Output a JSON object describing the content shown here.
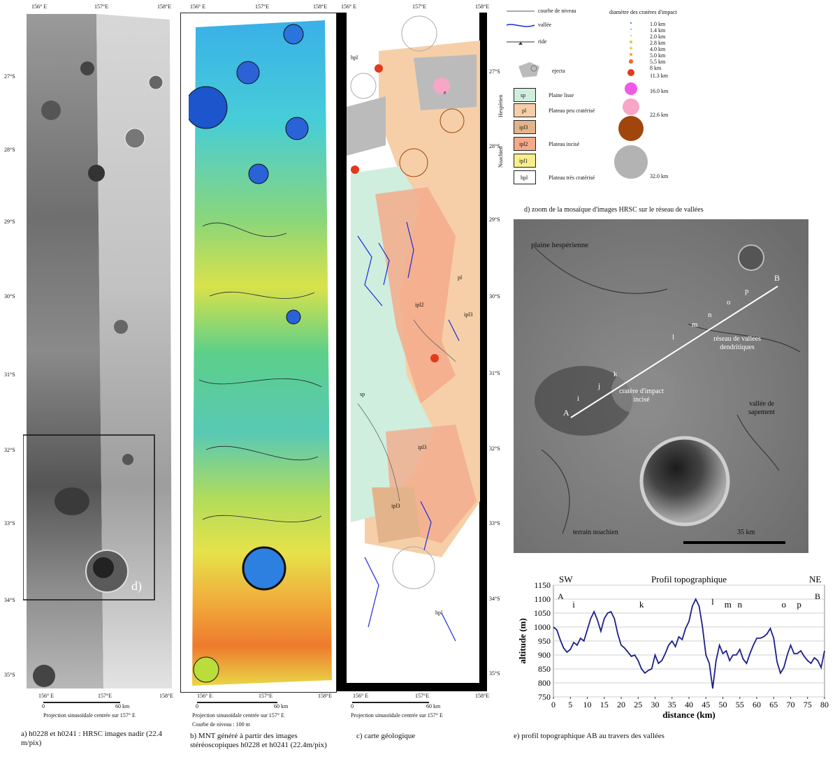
{
  "panel_a": {
    "top_ticks": [
      "156° E",
      "157°E",
      "158°E"
    ],
    "left_ticks": [
      "27°S",
      "28°S",
      "29°S",
      "30°S",
      "31°S",
      "32°S",
      "33°S",
      "34°S",
      "35°S"
    ],
    "bottom_ticks": [
      "156° E",
      "157°E",
      "158°E"
    ],
    "scale_zero": "0",
    "scale_end": "60 km",
    "projection": "Projection sinusoïdale centrée sur 157° E",
    "zoom_label": "d)",
    "caption": "a) h0228 et h0241 : HRSC images nadir (22.4 m/pix)"
  },
  "panel_b": {
    "top_ticks": [
      "156° E",
      "157°E",
      "158°E"
    ],
    "bottom_ticks": [
      "156° E",
      "157°E",
      "158°E"
    ],
    "scale_zero": "0",
    "scale_end": "60 km",
    "projection": "Projection sinusoïdale centrée sur 157° E",
    "contour": "Courbe de niveau : 100 m",
    "caption": "b) MNT généré à partir des images stéréoscopiques h0228 et h0241 (22.4m/pix)"
  },
  "panel_c": {
    "top_ticks": [
      "156° E",
      "157°E",
      "158°E"
    ],
    "right_ticks": [
      "27°S",
      "28°S",
      "29°S",
      "30°S",
      "31°S",
      "32°S",
      "33°S",
      "34°S",
      "35°S"
    ],
    "bottom_ticks": [
      "156° E",
      "157°E",
      "158°E"
    ],
    "scale_zero": "0",
    "scale_end": "60 km",
    "projection": "Projection sinusoïdale centrée sur 157° E",
    "map_labels": [
      "hpl",
      "pl",
      "ipl2",
      "ipl3",
      "sp",
      "ipl3",
      "ipl3",
      "hpl",
      "e"
    ],
    "caption": "c) carte géologique"
  },
  "legend": {
    "line_items": [
      "courbe de niveau",
      "vallée",
      "ride"
    ],
    "ejecta": "ejecta",
    "hesperian": "Hespérien",
    "noachian": "Noachien",
    "units": [
      {
        "code": "sp",
        "label": "Plaine lisse",
        "color": "#cfeede"
      },
      {
        "code": "pl",
        "label": "Plateau peu cratérisé",
        "color": "#f6cfa8"
      },
      {
        "code": "ipl3",
        "label": "",
        "color": "#e3b48c"
      },
      {
        "code": "ipl2",
        "label": "Plateau incisé",
        "color": "#f3aa8b"
      },
      {
        "code": "ipl1",
        "label": "",
        "color": "#f7ef8a"
      },
      {
        "code": "hpl",
        "label": "Plateau très cratérisé",
        "color": "#ffffff"
      }
    ],
    "crater_title": "diamètre des cratères d'impact",
    "crater_sizes": [
      {
        "label": "1.0 km",
        "color": "#2a57d9"
      },
      {
        "label": "1.4 km",
        "color": "#2ec3d4"
      },
      {
        "label": "2.0 km",
        "color": "#7bd37a"
      },
      {
        "label": "2.8 km",
        "color": "#c9d84a"
      },
      {
        "label": "4.0 km",
        "color": "#f4d34b"
      },
      {
        "label": "5.0 km",
        "color": "#f5a143"
      },
      {
        "label": "5.5 km",
        "color": "#ef6a2c"
      },
      {
        "label": "8 km",
        "color": "#e23a1a"
      },
      {
        "label": "11.3 km",
        "color": "#f059e8"
      },
      {
        "label": "16.0 km",
        "color": "#f7a6c6"
      },
      {
        "label": "22.6 km",
        "color": "#a0460c"
      },
      {
        "label": "32.0 km",
        "color": "#b3b3b3"
      }
    ]
  },
  "panel_d": {
    "title": "d) zoom  de la mosaïque d'images HRSC sur le réseau de vallées",
    "labels": {
      "plaine": "plaine hespérienne",
      "reseau": "réseau de vallées dendritiques",
      "cratere": "cratère d'impact incisé",
      "vallee": "vallée de sapement",
      "terrain": "terrain noachien",
      "scale": "35 km",
      "A": "A",
      "B": "B"
    },
    "profile_letters": [
      "i",
      "j",
      "k",
      "l",
      "m",
      "n",
      "o",
      "p"
    ]
  },
  "panel_e": {
    "caption": "e) profil topographique AB au travers des vallées",
    "chart_data": {
      "type": "line",
      "title": "Profil topographique",
      "xlabel": "distance (km)",
      "ylabel": "altitude (m)",
      "xlim": [
        0,
        80
      ],
      "ylim": [
        750,
        1150
      ],
      "x_ticks": [
        0,
        5,
        10,
        15,
        20,
        25,
        30,
        35,
        40,
        45,
        50,
        55,
        60,
        65,
        70,
        75,
        80
      ],
      "y_ticks": [
        750,
        800,
        850,
        900,
        950,
        1000,
        1050,
        1100,
        1150
      ],
      "grid": true,
      "corner_labels": {
        "sw": "SW",
        "ne": "NE",
        "a": "A",
        "b": "B"
      },
      "annotations": [
        {
          "text": "i",
          "x": 6,
          "y": 1000
        },
        {
          "text": "k",
          "x": 26,
          "y": 1000
        },
        {
          "text": "l",
          "x": 47,
          "y": 1010
        },
        {
          "text": "m",
          "x": 51.5,
          "y": 1000
        },
        {
          "text": "n",
          "x": 55,
          "y": 1000
        },
        {
          "text": "o",
          "x": 68,
          "y": 1000
        },
        {
          "text": "p",
          "x": 72.5,
          "y": 1000
        }
      ],
      "series": [
        {
          "color": "#1c1f8a",
          "x": [
            0,
            1,
            2,
            3,
            4,
            5,
            6,
            7,
            8,
            9,
            10,
            11,
            12,
            13,
            14,
            15,
            16,
            17,
            18,
            19,
            20,
            21,
            22,
            23,
            24,
            25,
            26,
            27,
            28,
            29,
            30,
            31,
            32,
            33,
            34,
            35,
            36,
            37,
            38,
            39,
            40,
            41,
            42,
            43,
            44,
            45,
            46,
            47,
            48,
            49,
            50,
            51,
            52,
            53,
            54,
            55,
            56,
            57,
            58,
            59,
            60,
            61,
            62,
            63,
            64,
            65,
            66,
            67,
            68,
            69,
            70,
            71,
            72,
            73,
            74,
            75,
            76,
            77,
            78,
            79,
            80
          ],
          "y": [
            1000,
            990,
            955,
            925,
            910,
            920,
            945,
            935,
            960,
            950,
            990,
            1030,
            1055,
            1025,
            985,
            1030,
            1050,
            1055,
            1030,
            975,
            935,
            925,
            910,
            895,
            900,
            880,
            850,
            835,
            845,
            850,
            900,
            870,
            880,
            905,
            935,
            950,
            930,
            965,
            955,
            995,
            1020,
            1075,
            1100,
            1075,
            1000,
            900,
            870,
            780,
            880,
            935,
            905,
            915,
            880,
            900,
            900,
            920,
            885,
            870,
            905,
            935,
            960,
            960,
            965,
            975,
            995,
            960,
            875,
            835,
            855,
            900,
            935,
            905,
            905,
            915,
            895,
            880,
            870,
            890,
            880,
            855,
            915
          ]
        }
      ]
    }
  }
}
